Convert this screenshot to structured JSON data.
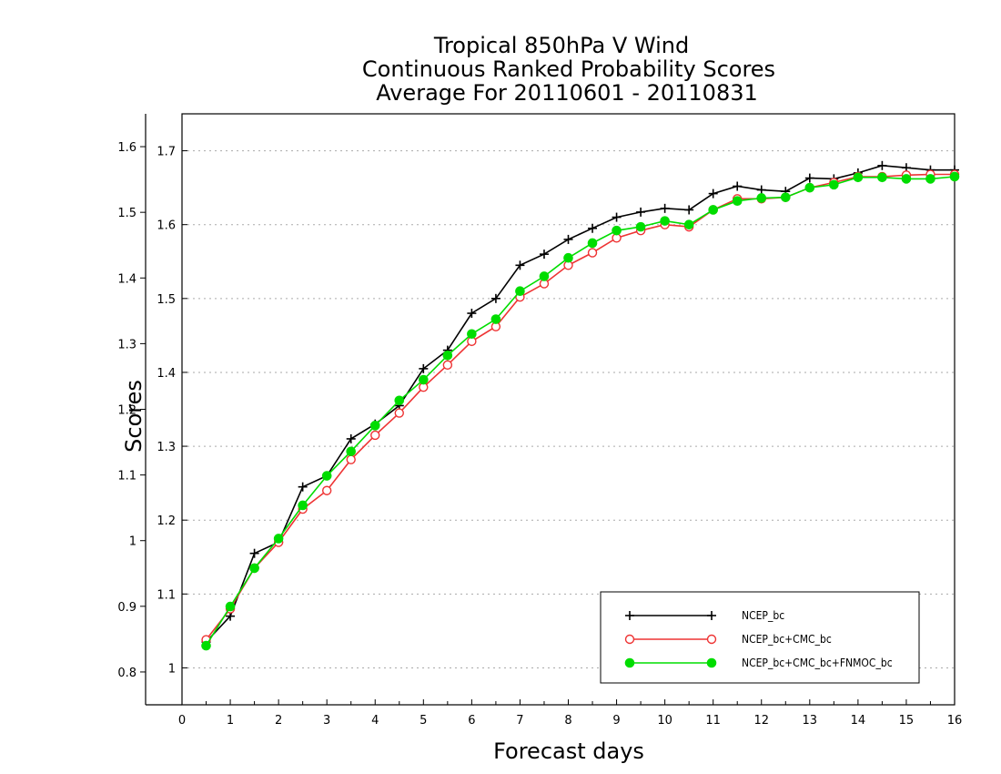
{
  "chart_data": {
    "type": "line",
    "title_lines": [
      "Tropical 850hPa V Wind",
      "Continuous Ranked Probability Scores",
      "Average For 20110601 - 20110831"
    ],
    "xlabel": "Forecast days",
    "ylabel": "Scores",
    "xlim": [
      0,
      16
    ],
    "xticks": [
      "0",
      "1",
      "2",
      "3",
      "4",
      "5",
      "6",
      "7",
      "8",
      "9",
      "10",
      "11",
      "12",
      "13",
      "14",
      "15",
      "16"
    ],
    "right_axis": {
      "ylim": [
        0.95,
        1.75
      ],
      "ticks": [
        {
          "value": 1.0,
          "label": "1"
        },
        {
          "value": 1.1,
          "label": "1.1"
        },
        {
          "value": 1.2,
          "label": "1.2"
        },
        {
          "value": 1.3,
          "label": "1.3"
        },
        {
          "value": 1.4,
          "label": "1.4"
        },
        {
          "value": 1.5,
          "label": "1.5"
        },
        {
          "value": 1.6,
          "label": "1.6"
        },
        {
          "value": 1.7,
          "label": "1.7"
        }
      ]
    },
    "left_axis": {
      "ylim": [
        0.75,
        1.65
      ],
      "ticks": [
        {
          "value": 0.8,
          "label": "0.8"
        },
        {
          "value": 0.9,
          "label": "0.9"
        },
        {
          "value": 1.0,
          "label": "1"
        },
        {
          "value": 1.1,
          "label": "1.1"
        },
        {
          "value": 1.2,
          "label": "1.2"
        },
        {
          "value": 1.3,
          "label": "1.3"
        },
        {
          "value": 1.4,
          "label": "1.4"
        },
        {
          "value": 1.5,
          "label": "1.5"
        },
        {
          "value": 1.6,
          "label": "1.6"
        }
      ]
    },
    "grid": true,
    "legend_position": "bottom-right",
    "x": [
      0.5,
      1,
      1.5,
      2,
      2.5,
      3,
      3.5,
      4,
      4.5,
      5,
      5.5,
      6,
      6.5,
      7,
      7.5,
      8,
      8.5,
      9,
      9.5,
      10,
      10.5,
      11,
      11.5,
      12,
      12.5,
      13,
      13.5,
      14,
      14.5,
      15,
      15.5,
      16
    ],
    "series": [
      {
        "name": "NCEP_bc",
        "color": "#000000",
        "marker": "plus",
        "values": [
          1.035,
          1.07,
          1.155,
          1.17,
          1.245,
          1.26,
          1.31,
          1.33,
          1.355,
          1.405,
          1.43,
          1.48,
          1.5,
          1.545,
          1.56,
          1.58,
          1.595,
          1.61,
          1.617,
          1.622,
          1.62,
          1.642,
          1.652,
          1.647,
          1.645,
          1.663,
          1.662,
          1.67,
          1.68,
          1.677,
          1.674,
          1.674
        ]
      },
      {
        "name": "NCEP_bc+CMC_bc",
        "color": "#ee3333",
        "marker": "open-circle",
        "values": [
          1.038,
          1.08,
          1.135,
          1.17,
          1.215,
          1.24,
          1.282,
          1.315,
          1.345,
          1.38,
          1.41,
          1.442,
          1.462,
          1.502,
          1.52,
          1.545,
          1.562,
          1.582,
          1.592,
          1.6,
          1.597,
          1.62,
          1.635,
          1.635,
          1.637,
          1.65,
          1.657,
          1.665,
          1.665,
          1.667,
          1.668,
          1.668
        ]
      },
      {
        "name": "NCEP_bc+CMC_bc+FNMOC_bc",
        "color": "#00dd00",
        "marker": "filled-circle",
        "values": [
          1.03,
          1.083,
          1.135,
          1.175,
          1.22,
          1.26,
          1.293,
          1.328,
          1.362,
          1.39,
          1.423,
          1.452,
          1.472,
          1.51,
          1.53,
          1.555,
          1.575,
          1.592,
          1.597,
          1.605,
          1.6,
          1.62,
          1.632,
          1.636,
          1.637,
          1.65,
          1.654,
          1.664,
          1.664,
          1.662,
          1.662,
          1.665
        ]
      }
    ]
  }
}
